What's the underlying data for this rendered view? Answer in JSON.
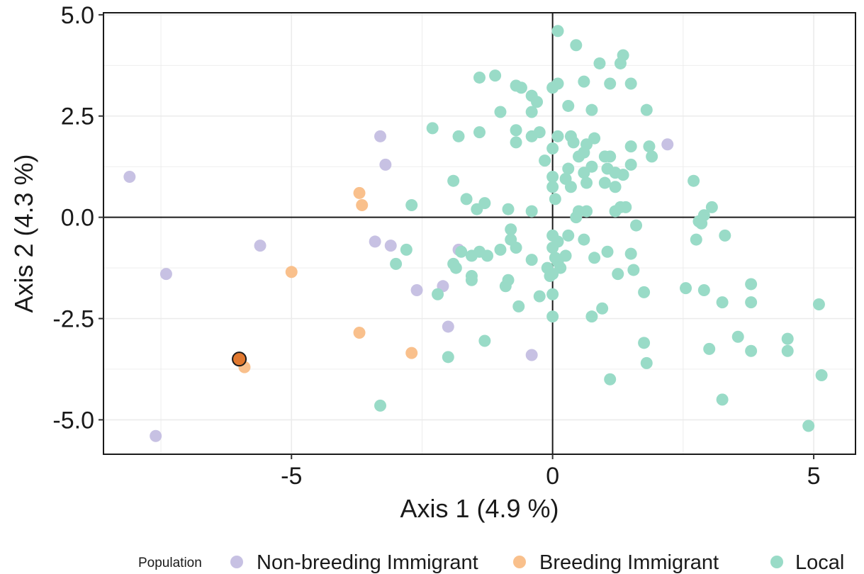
{
  "chart_data": {
    "type": "scatter",
    "xlabel": "Axis 1 (4.9 %)",
    "ylabel": "Axis 2 (4.3 %)",
    "xlim": [
      -8.6,
      5.8
    ],
    "ylim": [
      -5.85,
      5.05
    ],
    "x_ticks": [
      -5,
      0,
      5
    ],
    "x_tick_labels": [
      "-5",
      "0",
      "5"
    ],
    "y_ticks": [
      -5,
      -2.5,
      0,
      2.5,
      5
    ],
    "y_tick_labels": [
      "-5.0",
      "-2.5",
      "0.0",
      "2.5",
      "5.0"
    ],
    "grid": true,
    "reference_lines": {
      "x": 0,
      "y": 0
    },
    "legend": {
      "title": "Population",
      "placement": "bottom"
    },
    "highlighted_point": {
      "series": "Breeding Immigrant",
      "x": -6.0,
      "y": -3.5,
      "color": "#e0782f"
    },
    "series": [
      {
        "name": "Non-breeding Immigrant",
        "color": "#c7c1e3",
        "points": [
          [
            -8.1,
            1.0
          ],
          [
            -7.4,
            -1.4
          ],
          [
            -7.6,
            -5.4
          ],
          [
            -5.6,
            -0.7
          ],
          [
            -3.3,
            2.0
          ],
          [
            -3.2,
            1.3
          ],
          [
            -3.4,
            -0.6
          ],
          [
            -3.1,
            -0.7
          ],
          [
            -2.6,
            -1.8
          ],
          [
            -2.1,
            -1.7
          ],
          [
            -2.0,
            -2.7
          ],
          [
            -1.8,
            -0.8
          ],
          [
            -0.4,
            -3.4
          ],
          [
            2.2,
            1.8
          ]
        ]
      },
      {
        "name": "Breeding Immigrant",
        "color": "#f9c08c",
        "points": [
          [
            -3.7,
            0.6
          ],
          [
            -3.65,
            0.3
          ],
          [
            -5.0,
            -1.35
          ],
          [
            -3.7,
            -2.85
          ],
          [
            -2.7,
            -3.35
          ],
          [
            -5.9,
            -3.7
          ],
          [
            -6.0,
            -3.5
          ]
        ]
      },
      {
        "name": "Local",
        "color": "#99dbc7",
        "points": [
          [
            0.1,
            4.6
          ],
          [
            0.45,
            4.25
          ],
          [
            1.35,
            4.0
          ],
          [
            1.3,
            3.8
          ],
          [
            0.9,
            3.8
          ],
          [
            -1.4,
            3.45
          ],
          [
            -1.1,
            3.5
          ],
          [
            -0.7,
            3.25
          ],
          [
            -0.6,
            3.2
          ],
          [
            0.0,
            3.2
          ],
          [
            0.1,
            3.3
          ],
          [
            0.6,
            3.35
          ],
          [
            1.1,
            3.3
          ],
          [
            1.5,
            3.3
          ],
          [
            -0.4,
            3.0
          ],
          [
            -0.3,
            2.85
          ],
          [
            0.3,
            2.75
          ],
          [
            -1.0,
            2.6
          ],
          [
            -0.4,
            2.6
          ],
          [
            0.75,
            2.65
          ],
          [
            1.8,
            2.65
          ],
          [
            -2.3,
            2.2
          ],
          [
            -1.4,
            2.1
          ],
          [
            -1.8,
            2.0
          ],
          [
            -0.7,
            2.15
          ],
          [
            -0.4,
            2.0
          ],
          [
            -0.25,
            2.1
          ],
          [
            0.1,
            2.0
          ],
          [
            0.35,
            2.0
          ],
          [
            0.4,
            1.85
          ],
          [
            0.65,
            1.8
          ],
          [
            0.8,
            1.95
          ],
          [
            -0.7,
            1.85
          ],
          [
            0.5,
            1.5
          ],
          [
            0.6,
            1.6
          ],
          [
            1.0,
            1.5
          ],
          [
            1.1,
            1.5
          ],
          [
            1.5,
            1.75
          ],
          [
            1.85,
            1.75
          ],
          [
            1.9,
            1.5
          ],
          [
            -0.15,
            1.4
          ],
          [
            0.0,
            1.7
          ],
          [
            0.3,
            1.2
          ],
          [
            0.6,
            1.1
          ],
          [
            0.75,
            1.25
          ],
          [
            1.05,
            1.2
          ],
          [
            1.2,
            1.1
          ],
          [
            1.35,
            1.05
          ],
          [
            1.5,
            1.3
          ],
          [
            0.0,
            1.0
          ],
          [
            0.25,
            0.95
          ],
          [
            0.35,
            0.75
          ],
          [
            0.65,
            0.85
          ],
          [
            1.0,
            0.85
          ],
          [
            1.2,
            0.75
          ],
          [
            -1.9,
            0.9
          ],
          [
            -1.65,
            0.45
          ],
          [
            -1.3,
            0.35
          ],
          [
            -1.45,
            0.2
          ],
          [
            -0.85,
            0.2
          ],
          [
            -0.4,
            0.15
          ],
          [
            0.05,
            0.45
          ],
          [
            0.0,
            0.75
          ],
          [
            0.5,
            0.15
          ],
          [
            0.65,
            0.15
          ],
          [
            0.45,
            0.0
          ],
          [
            1.2,
            0.15
          ],
          [
            1.3,
            0.25
          ],
          [
            1.4,
            0.25
          ],
          [
            -2.7,
            0.3
          ],
          [
            2.7,
            0.9
          ],
          [
            2.8,
            -0.1
          ],
          [
            2.9,
            0.05
          ],
          [
            3.05,
            0.25
          ],
          [
            2.85,
            -0.15
          ],
          [
            1.6,
            -0.2
          ],
          [
            3.3,
            -0.45
          ],
          [
            2.75,
            -0.55
          ],
          [
            -0.8,
            -0.3
          ],
          [
            -0.8,
            -0.55
          ],
          [
            -0.7,
            -0.75
          ],
          [
            -1.0,
            -0.8
          ],
          [
            0.0,
            -0.45
          ],
          [
            0.1,
            -0.6
          ],
          [
            0.3,
            -0.45
          ],
          [
            0.6,
            -0.55
          ],
          [
            0.0,
            -0.75
          ],
          [
            0.05,
            -1.0
          ],
          [
            0.25,
            -0.95
          ],
          [
            0.8,
            -1.0
          ],
          [
            1.05,
            -0.85
          ],
          [
            1.5,
            -0.9
          ],
          [
            -1.75,
            -0.85
          ],
          [
            -1.4,
            -0.85
          ],
          [
            -1.25,
            -0.95
          ],
          [
            -1.55,
            -0.95
          ],
          [
            -2.8,
            -0.8
          ],
          [
            -3.0,
            -1.15
          ],
          [
            -1.9,
            -1.15
          ],
          [
            -1.85,
            -1.25
          ],
          [
            -1.55,
            -1.45
          ],
          [
            -1.55,
            -1.55
          ],
          [
            -0.4,
            -1.05
          ],
          [
            -0.1,
            -1.25
          ],
          [
            0.1,
            -1.1
          ],
          [
            0.15,
            -1.25
          ],
          [
            0.0,
            -1.4
          ],
          [
            -0.05,
            -1.45
          ],
          [
            1.25,
            -1.4
          ],
          [
            1.55,
            -1.3
          ],
          [
            -0.85,
            -1.55
          ],
          [
            -0.9,
            -1.7
          ],
          [
            -2.2,
            -1.9
          ],
          [
            -0.65,
            -2.2
          ],
          [
            -0.25,
            -1.95
          ],
          [
            0.0,
            -1.9
          ],
          [
            0.0,
            -2.45
          ],
          [
            0.75,
            -2.45
          ],
          [
            0.95,
            -2.25
          ],
          [
            1.75,
            -1.85
          ],
          [
            2.55,
            -1.75
          ],
          [
            2.9,
            -1.8
          ],
          [
            3.25,
            -2.1
          ],
          [
            3.8,
            -1.65
          ],
          [
            3.8,
            -2.1
          ],
          [
            -1.3,
            -3.05
          ],
          [
            -2.0,
            -3.45
          ],
          [
            1.75,
            -3.1
          ],
          [
            1.8,
            -3.6
          ],
          [
            1.1,
            -4.0
          ],
          [
            3.0,
            -3.25
          ],
          [
            3.55,
            -2.95
          ],
          [
            3.8,
            -3.3
          ],
          [
            4.5,
            -3.0
          ],
          [
            4.5,
            -3.3
          ],
          [
            5.1,
            -2.15
          ],
          [
            5.15,
            -3.9
          ],
          [
            3.25,
            -4.5
          ],
          [
            4.9,
            -5.15
          ],
          [
            -3.3,
            -4.65
          ]
        ]
      }
    ]
  }
}
